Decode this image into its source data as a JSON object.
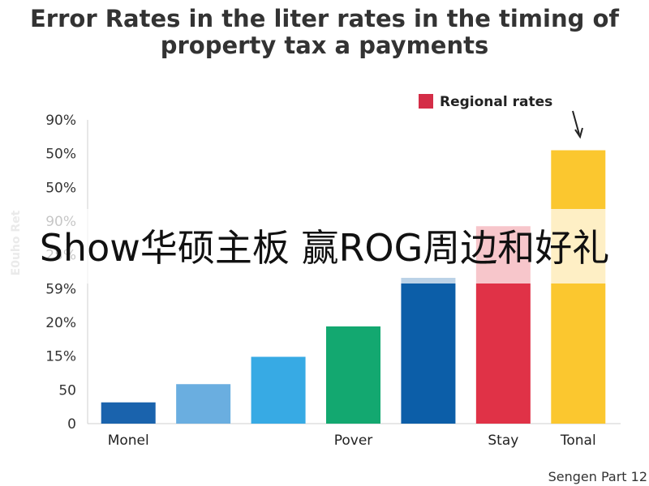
{
  "chart_data": {
    "type": "bar",
    "title_line1": "Error Rates in the liter rates in the timing of",
    "title_line2": "property tax a payments",
    "ylabel": "E0uho Ret",
    "y_ticks": [
      "90%",
      "50%",
      "50%",
      "90%",
      "25%",
      "59%",
      "20%",
      "15%",
      "50",
      "0"
    ],
    "categories": [
      "Monel",
      "",
      "",
      "Pover",
      "",
      "Stay",
      "Tonal"
    ],
    "values": [
      0.07,
      0.13,
      0.22,
      0.32,
      0.48,
      0.65,
      0.9
    ],
    "ylim": [
      0,
      1
    ],
    "colors": [
      "#1a63ad",
      "#6aaee0",
      "#37aae4",
      "#13a870",
      "#0c5ea8",
      "#e03247",
      "#fbc72f"
    ],
    "legend": {
      "label": "Regional rates",
      "color": "#d42d47",
      "position": "top-right"
    },
    "grid": false
  },
  "overlay_text": "Show华硕主板 赢ROG周边和好礼",
  "source_note": "Sengen Part 12"
}
